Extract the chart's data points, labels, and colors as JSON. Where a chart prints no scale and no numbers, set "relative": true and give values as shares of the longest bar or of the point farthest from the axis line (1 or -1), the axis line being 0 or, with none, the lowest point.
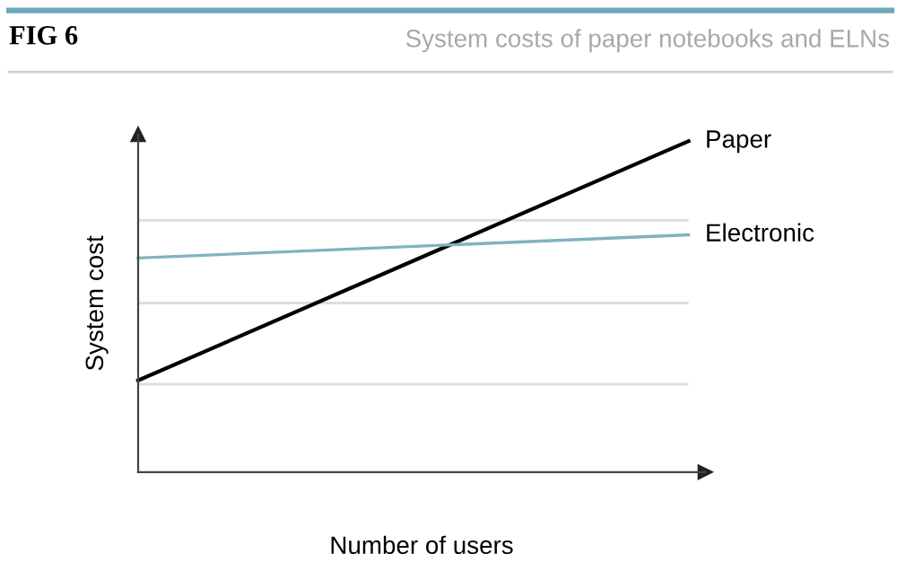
{
  "chart_data": {
    "type": "line",
    "title": "FIG 6",
    "subtitle": "System costs of paper notebooks and ELNs",
    "xlabel": "Number of users",
    "ylabel": "System cost",
    "relative": true,
    "marker": "none",
    "line_style": "solid",
    "ref_lines": [
      {
        "axis": "y",
        "value": 0.266,
        "color": "#dddddd"
      },
      {
        "axis": "y",
        "value": 0.511,
        "color": "#dddddd"
      },
      {
        "axis": "y",
        "value": 0.761,
        "color": "#dddddd"
      }
    ],
    "categories": [
      null,
      null
    ],
    "series": [
      {
        "name": "Paper",
        "color": "#000000",
        "values": [
          0.277,
          1
        ]
      },
      {
        "name": "Electronic",
        "color": "#7fb3c0",
        "values": [
          0.647,
          0.717
        ]
      }
    ]
  }
}
